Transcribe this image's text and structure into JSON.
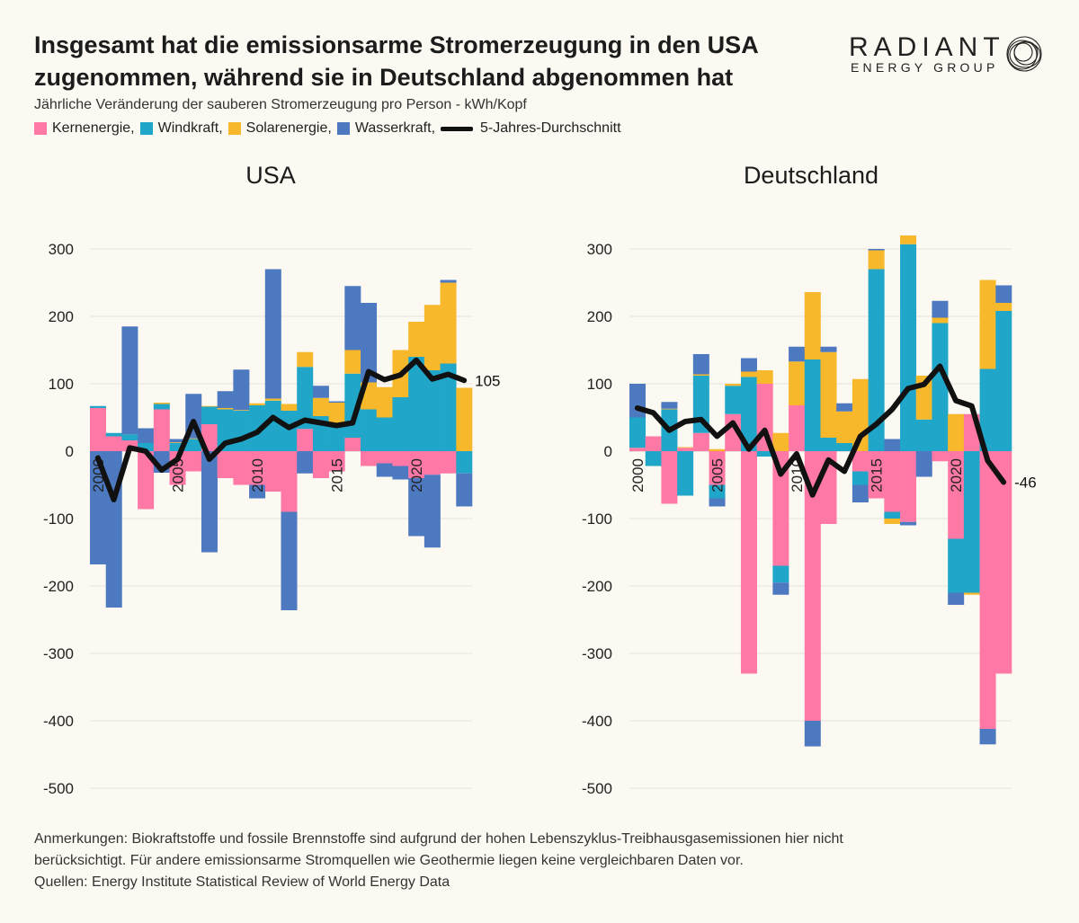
{
  "header": {
    "title_line1": "Insgesamt hat die emissionsarme Stromerzeugung in den USA",
    "title_line2": "zugenommen, während sie in Deutschland abgenommen hat",
    "subtitle": "Jährliche Veränderung der sauberen Stromerzeugung pro Person - kWh/Kopf"
  },
  "logo": {
    "name": "RADIANT",
    "sub": "ENERGY GROUP"
  },
  "legend": [
    {
      "label": "Kernenergie,",
      "color": "#ff78a6"
    },
    {
      "label": "Windkraft,",
      "color": "#20a6c8"
    },
    {
      "label": "Solarenergie,",
      "color": "#f7b82b"
    },
    {
      "label": "Wasserkraft,",
      "color": "#4d79c0"
    },
    {
      "label": "5-Jahres-Durchschnitt",
      "color": "#111111"
    }
  ],
  "colors": {
    "nuclear": "#ff78a6",
    "wind": "#20a6c8",
    "solar": "#f7b82b",
    "hydro": "#4d79c0",
    "avg": "#111111",
    "grid": "#e6e3dc"
  },
  "chart_data": [
    {
      "type": "bar",
      "title": "USA",
      "ylim": [
        -500,
        300
      ],
      "yticks": [
        300,
        200,
        100,
        0,
        -100,
        -200,
        -300,
        -400,
        -500
      ],
      "xticks": [
        2000,
        2005,
        2010,
        2015,
        2020
      ],
      "years": [
        2000,
        2001,
        2002,
        2003,
        2004,
        2005,
        2006,
        2007,
        2008,
        2009,
        2010,
        2011,
        2012,
        2013,
        2014,
        2015,
        2016,
        2017,
        2018,
        2019,
        2020,
        2021,
        2022,
        2023
      ],
      "series": [
        {
          "name": "Kernenergie",
          "values": [
            64,
            22,
            16,
            -86,
            62,
            -50,
            -30,
            40,
            -40,
            -50,
            -50,
            -60,
            -90,
            33,
            -40,
            -30,
            20,
            -22,
            -18,
            -22,
            -40,
            -35,
            -33,
            0
          ]
        },
        {
          "name": "Windkraft",
          "values": [
            3,
            5,
            9,
            12,
            8,
            12,
            18,
            26,
            62,
            60,
            68,
            75,
            60,
            92,
            52,
            42,
            95,
            62,
            50,
            80,
            140,
            120,
            130,
            -33
          ]
        },
        {
          "name": "Solarenergie",
          "values": [
            0,
            0,
            0,
            0,
            2,
            1,
            1,
            1,
            2,
            1,
            3,
            3,
            10,
            22,
            27,
            30,
            35,
            40,
            45,
            70,
            52,
            97,
            120,
            94
          ]
        },
        {
          "name": "Wasserkraft",
          "values": [
            -168,
            -232,
            160,
            22,
            -32,
            5,
            66,
            -150,
            25,
            60,
            -20,
            192,
            -146,
            -33,
            18,
            2,
            95,
            118,
            -20,
            -20,
            -86,
            -108,
            4,
            -49
          ]
        }
      ],
      "avg": [
        -10,
        -72,
        5,
        0,
        -28,
        -12,
        44,
        -12,
        12,
        18,
        28,
        50,
        35,
        46,
        42,
        38,
        42,
        118,
        106,
        113,
        135,
        107,
        114,
        105
      ],
      "avg_end_label": "105"
    },
    {
      "type": "bar",
      "title": "Deutschland",
      "ylim": [
        -500,
        300
      ],
      "yticks": [
        300,
        200,
        100,
        0,
        -100,
        -200,
        -300,
        -400,
        -500
      ],
      "xticks": [
        2000,
        2005,
        2010,
        2015,
        2020
      ],
      "years": [
        2000,
        2001,
        2002,
        2003,
        2004,
        2005,
        2006,
        2007,
        2008,
        2009,
        2010,
        2011,
        2012,
        2013,
        2014,
        2015,
        2016,
        2017,
        2018,
        2019,
        2020,
        2021,
        2022,
        2023
      ],
      "series": [
        {
          "name": "Kernenergie",
          "values": [
            5,
            22,
            -78,
            5,
            27,
            -50,
            55,
            -330,
            100,
            -170,
            68,
            -400,
            -108,
            0,
            -30,
            -70,
            -90,
            -105,
            0,
            -15,
            -130,
            55,
            -412,
            -330
          ]
        },
        {
          "name": "Windkraft",
          "values": [
            45,
            -22,
            62,
            -66,
            85,
            -20,
            42,
            110,
            -8,
            -25,
            0,
            136,
            20,
            12,
            -20,
            270,
            -10,
            307,
            47,
            190,
            -80,
            -210,
            122,
            208
          ]
        },
        {
          "name": "Solarenergie",
          "values": [
            0,
            0,
            1,
            1,
            2,
            3,
            3,
            8,
            20,
            27,
            65,
            100,
            127,
            47,
            107,
            28,
            -8,
            13,
            65,
            8,
            55,
            -3,
            132,
            12
          ]
        },
        {
          "name": "Wasserkraft",
          "values": [
            50,
            0,
            10,
            0,
            30,
            -12,
            0,
            20,
            0,
            -18,
            22,
            -38,
            8,
            12,
            -26,
            2,
            18,
            -5,
            -38,
            25,
            -18,
            0,
            -23,
            26
          ]
        }
      ],
      "avg": [
        64,
        57,
        31,
        44,
        47,
        22,
        42,
        3,
        31,
        -34,
        -4,
        -65,
        -13,
        -30,
        22,
        40,
        62,
        93,
        99,
        126,
        75,
        67,
        -14,
        -46
      ],
      "avg_end_label": "-46"
    }
  ],
  "notes": {
    "line1": "Anmerkungen: Biokraftstoffe und fossile Brennstoffe sind aufgrund der hohen Lebenszyklus-Treibhausgasemissionen hier nicht",
    "line2": "berücksichtigt. Für andere emissionsarme Stromquellen wie Geothermie liegen keine vergleichbaren Daten vor.",
    "line3": "Quellen: Energy Institute Statistical Review of World Energy Data"
  }
}
